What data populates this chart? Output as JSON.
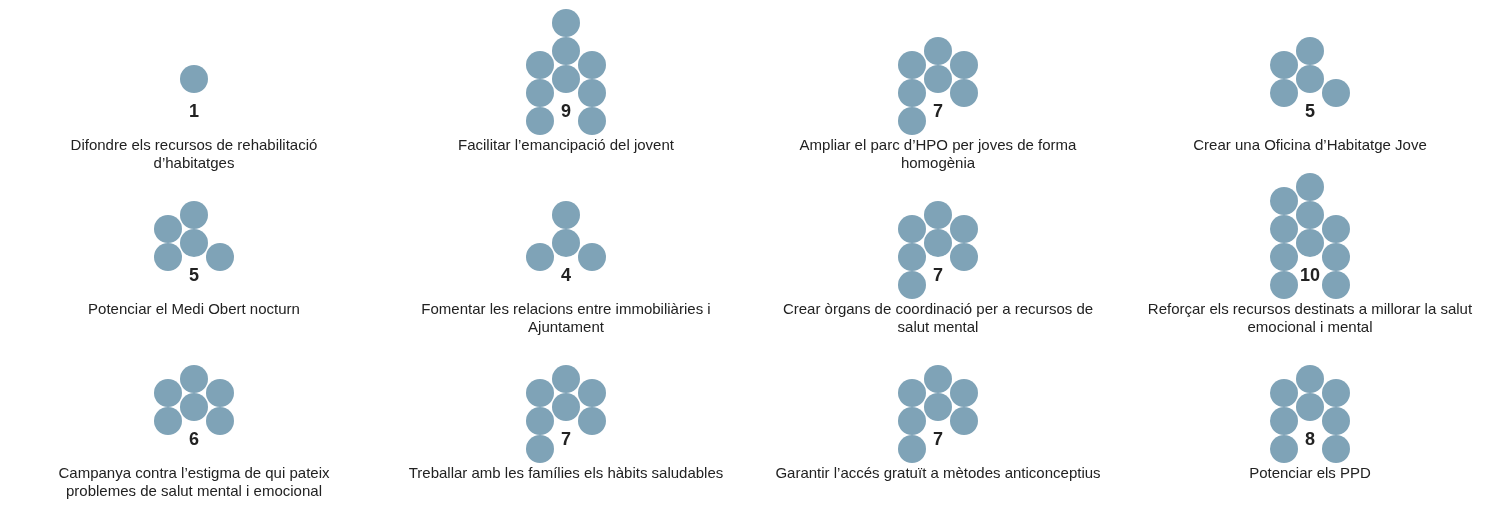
{
  "chart_data": {
    "type": "other",
    "color": "#7fa3b7",
    "data_labels": true,
    "categories": [
      "Difondre els recursos de rehabilitació d’habitatges",
      "Facilitar l’emancipació del jovent",
      "Ampliar el parc d’HPO per joves de forma homogènia",
      "Crear una Oficina d’Habitatge Jove",
      "Potenciar el Medi Obert nocturn",
      "Fomentar les relacions entre immobiliàries i Ajuntament",
      "Crear òrgans de coordinació per a recursos de salut mental",
      "Reforçar els recursos destinats a millorar la salut emocional i mental",
      "Campanya contra l’estigma de qui pateix problemes de salut mental i emocional",
      "Treballar amb les famílies els hàbits saludables",
      "Garantir l’accés gratuït a mètodes anticonceptius",
      "Potenciar els PPD"
    ],
    "values": [
      1,
      9,
      7,
      5,
      5,
      4,
      7,
      10,
      6,
      7,
      7,
      8
    ]
  }
}
